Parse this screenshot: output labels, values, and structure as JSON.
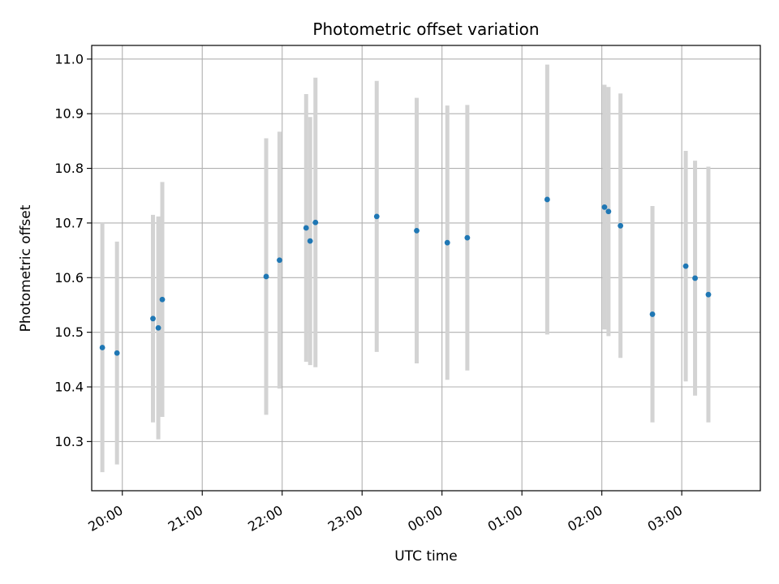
{
  "chart_data": {
    "type": "scatter",
    "title": "Photometric offset variation",
    "xlabel": "UTC time",
    "ylabel": "Photometric offset",
    "x_axis_kind": "time",
    "xlim": [
      "19:37",
      "03:59"
    ],
    "ylim": [
      10.21,
      11.025
    ],
    "grid": true,
    "x_ticks": [
      "20:00",
      "21:00",
      "22:00",
      "23:00",
      "00:00",
      "01:00",
      "02:00",
      "03:00"
    ],
    "y_ticks": [
      "10.3",
      "10.4",
      "10.5",
      "10.6",
      "10.7",
      "10.8",
      "10.9",
      "11.0"
    ],
    "colors": {
      "points": "#1f77b4",
      "error_bars": "#d3d3d3",
      "grid": "#b0b0b0"
    },
    "points": [
      {
        "x": "19:45",
        "y": 10.472,
        "yerr": 0.228
      },
      {
        "x": "19:56",
        "y": 10.462,
        "yerr": 0.204
      },
      {
        "x": "20:23",
        "y": 10.525,
        "yerr": 0.19
      },
      {
        "x": "20:27",
        "y": 10.508,
        "yerr": 0.204
      },
      {
        "x": "20:30",
        "y": 10.56,
        "yerr": 0.215
      },
      {
        "x": "21:48",
        "y": 10.602,
        "yerr": 0.253
      },
      {
        "x": "21:58",
        "y": 10.632,
        "yerr": 0.235
      },
      {
        "x": "22:18",
        "y": 10.691,
        "yerr": 0.245
      },
      {
        "x": "22:21",
        "y": 10.667,
        "yerr": 0.227
      },
      {
        "x": "22:25",
        "y": 10.701,
        "yerr": 0.265
      },
      {
        "x": "23:11",
        "y": 10.712,
        "yerr": 0.248
      },
      {
        "x": "23:41",
        "y": 10.686,
        "yerr": 0.243
      },
      {
        "x": "00:04",
        "y": 10.664,
        "yerr": 0.251
      },
      {
        "x": "00:19",
        "y": 10.673,
        "yerr": 0.243
      },
      {
        "x": "01:19",
        "y": 10.743,
        "yerr": 0.247
      },
      {
        "x": "02:02",
        "y": 10.729,
        "yerr": 0.224
      },
      {
        "x": "02:05",
        "y": 10.721,
        "yerr": 0.228
      },
      {
        "x": "02:14",
        "y": 10.695,
        "yerr": 0.242
      },
      {
        "x": "02:38",
        "y": 10.533,
        "yerr": 0.198
      },
      {
        "x": "03:03",
        "y": 10.621,
        "yerr": 0.211
      },
      {
        "x": "03:10",
        "y": 10.599,
        "yerr": 0.215
      },
      {
        "x": "03:20",
        "y": 10.569,
        "yerr": 0.234
      }
    ]
  }
}
